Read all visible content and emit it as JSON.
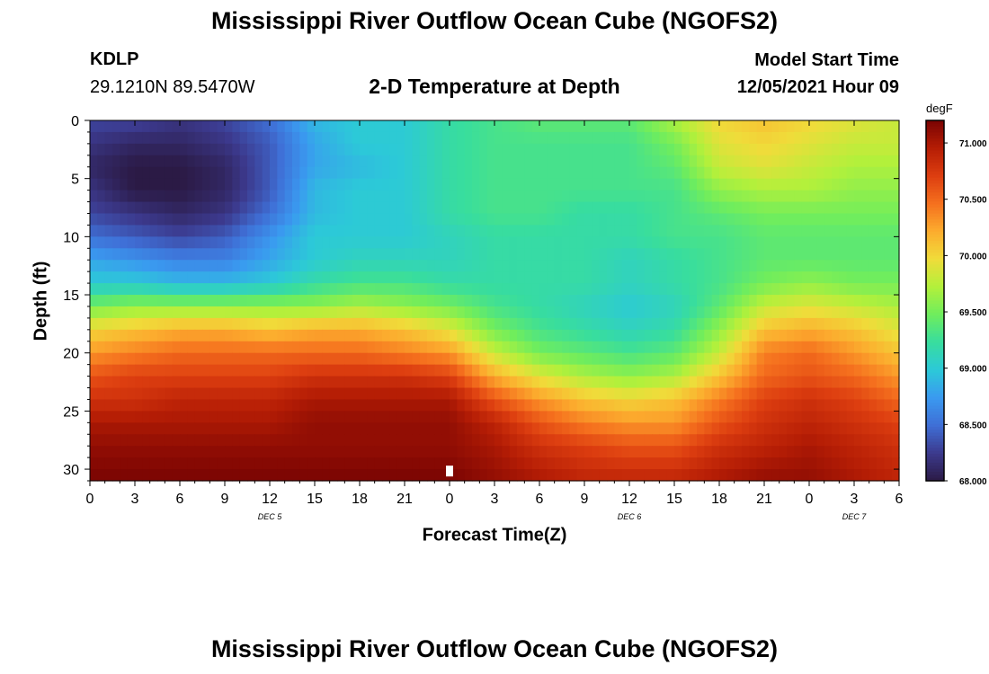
{
  "header": {
    "title": "Mississippi River Outflow Ocean Cube (NGOFS2)",
    "station_id": "KDLP",
    "station_coords": "29.1210N  89.5470W",
    "subtitle": "2-D Temperature at Depth",
    "model_start_label": "Model Start Time",
    "model_start_time": "12/05/2021 Hour 09"
  },
  "footer": {
    "title": "Mississippi River Outflow Ocean Cube (NGOFS2)"
  },
  "chart_data": {
    "type": "heatmap",
    "title": "2-D Temperature at Depth",
    "xlabel": "Forecast Time(Z)",
    "ylabel": "Depth (ft)",
    "x_ticks": [
      "0",
      "3",
      "6",
      "9",
      "12",
      "15",
      "18",
      "21",
      "0",
      "3",
      "6",
      "9",
      "12",
      "15",
      "18",
      "21",
      "0",
      "3",
      "6"
    ],
    "x_hours": [
      0,
      54
    ],
    "date_labels": [
      {
        "label": "DEC 5",
        "hour": 12
      },
      {
        "label": "DEC 6",
        "hour": 36
      },
      {
        "label": "DEC 7",
        "hour": 51
      }
    ],
    "y_ticks": [
      0,
      5,
      10,
      15,
      20,
      25,
      30
    ],
    "ylim": [
      0,
      31
    ],
    "y_inverted": true,
    "colorbar": {
      "unit": "degF",
      "range": [
        68.0,
        71.2
      ],
      "ticks": [
        "71.000",
        "70.500",
        "70.000",
        "69.500",
        "69.000",
        "68.500",
        "68.000"
      ],
      "tick_values": [
        71.0,
        70.5,
        70.0,
        69.5,
        69.0,
        68.5,
        68.0
      ],
      "colors": [
        "#2b1a45",
        "#3c3a8e",
        "#3f6fd6",
        "#3a9af0",
        "#2cc9d8",
        "#38dd9e",
        "#6fed5d",
        "#b3f03b",
        "#f0dc3a",
        "#fcac2e",
        "#f5701e",
        "#dd3e10",
        "#b51d05",
        "#7a0403"
      ]
    },
    "x_hours_sampled": [
      0,
      3,
      6,
      9,
      12,
      15,
      18,
      21,
      24,
      27,
      30,
      33,
      36,
      39,
      42,
      45,
      48,
      51,
      54
    ],
    "depths_sampled": [
      0,
      2,
      4,
      6,
      8,
      10,
      12,
      14,
      16,
      18,
      20,
      22,
      24,
      26,
      28,
      31
    ],
    "values": [
      [
        68.3,
        68.3,
        68.2,
        68.3,
        68.5,
        68.9,
        69.0,
        69.0,
        69.2,
        69.3,
        69.4,
        69.4,
        69.4,
        69.7,
        70.0,
        70.1,
        70.0,
        69.9,
        69.8
      ],
      [
        68.2,
        68.1,
        68.1,
        68.2,
        68.4,
        68.8,
        69.0,
        69.0,
        69.2,
        69.3,
        69.3,
        69.3,
        69.3,
        69.5,
        69.9,
        70.0,
        69.9,
        69.8,
        69.8
      ],
      [
        68.1,
        68.0,
        68.0,
        68.1,
        68.4,
        68.8,
        68.9,
        69.0,
        69.2,
        69.3,
        69.3,
        69.3,
        69.3,
        69.4,
        69.8,
        69.9,
        69.8,
        69.7,
        69.7
      ],
      [
        68.2,
        68.0,
        68.0,
        68.1,
        68.4,
        68.9,
        69.0,
        69.0,
        69.2,
        69.3,
        69.3,
        69.3,
        69.3,
        69.3,
        69.6,
        69.7,
        69.7,
        69.6,
        69.6
      ],
      [
        68.3,
        68.2,
        68.1,
        68.2,
        68.5,
        68.9,
        69.0,
        69.0,
        69.2,
        69.3,
        69.3,
        69.2,
        69.2,
        69.3,
        69.4,
        69.5,
        69.5,
        69.5,
        69.5
      ],
      [
        68.5,
        68.4,
        68.3,
        68.4,
        68.7,
        69.0,
        69.0,
        69.0,
        69.1,
        69.2,
        69.2,
        69.2,
        69.2,
        69.3,
        69.3,
        69.4,
        69.4,
        69.4,
        69.4
      ],
      [
        68.8,
        68.7,
        68.6,
        68.6,
        68.8,
        69.0,
        69.1,
        69.1,
        69.1,
        69.2,
        69.2,
        69.2,
        69.1,
        69.2,
        69.3,
        69.4,
        69.4,
        69.4,
        69.4
      ],
      [
        69.0,
        69.0,
        68.9,
        68.9,
        69.0,
        69.2,
        69.3,
        69.3,
        69.2,
        69.2,
        69.2,
        69.2,
        69.1,
        69.2,
        69.3,
        69.5,
        69.6,
        69.5,
        69.5
      ],
      [
        69.5,
        69.6,
        69.6,
        69.6,
        69.6,
        69.6,
        69.7,
        69.6,
        69.5,
        69.3,
        69.2,
        69.1,
        69.0,
        69.1,
        69.4,
        69.8,
        69.9,
        69.8,
        69.7
      ],
      [
        70.0,
        70.1,
        70.2,
        70.2,
        70.1,
        70.2,
        70.2,
        70.1,
        69.9,
        69.5,
        69.3,
        69.2,
        69.1,
        69.2,
        69.6,
        70.1,
        70.2,
        70.1,
        69.9
      ],
      [
        70.3,
        70.4,
        70.5,
        70.5,
        70.5,
        70.5,
        70.5,
        70.4,
        70.3,
        69.8,
        69.5,
        69.4,
        69.3,
        69.4,
        69.8,
        70.4,
        70.5,
        70.3,
        70.1
      ],
      [
        70.6,
        70.7,
        70.7,
        70.7,
        70.7,
        70.8,
        70.8,
        70.8,
        70.7,
        70.2,
        69.9,
        69.7,
        69.6,
        69.7,
        70.1,
        70.5,
        70.6,
        70.5,
        70.3
      ],
      [
        70.8,
        70.8,
        70.9,
        70.9,
        70.9,
        71.0,
        71.0,
        71.0,
        71.0,
        70.6,
        70.3,
        70.1,
        70.0,
        70.1,
        70.4,
        70.7,
        70.8,
        70.7,
        70.5
      ],
      [
        71.0,
        71.0,
        71.0,
        71.0,
        71.0,
        71.1,
        71.1,
        71.1,
        71.1,
        70.9,
        70.6,
        70.4,
        70.3,
        70.3,
        70.6,
        70.8,
        70.9,
        70.8,
        70.7
      ],
      [
        71.1,
        71.1,
        71.1,
        71.1,
        71.1,
        71.1,
        71.1,
        71.1,
        71.1,
        71.0,
        70.8,
        70.7,
        70.6,
        70.6,
        70.8,
        70.9,
        71.0,
        70.9,
        70.8
      ],
      [
        71.2,
        71.2,
        71.2,
        71.2,
        71.2,
        71.2,
        71.2,
        71.2,
        71.2,
        71.1,
        71.0,
        70.9,
        70.9,
        70.9,
        71.0,
        71.1,
        71.1,
        71.0,
        70.9
      ]
    ]
  }
}
